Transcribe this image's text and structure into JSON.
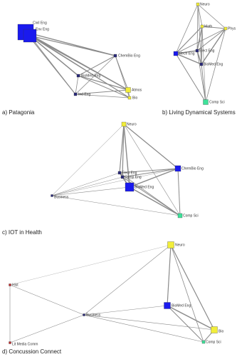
{
  "panels": [
    {
      "caption": "a) Patagonia",
      "nodes": [
        "Civil Eng",
        "Env Eng",
        "ChemBio Eng",
        "BioMed Eng",
        "Ind Eng",
        "Atmos",
        "Bio"
      ]
    },
    {
      "caption": "b) Living Dynamical Systems",
      "nodes": [
        "Neuro",
        "Math",
        "Phys",
        "Elect Eng",
        "Mech Eng",
        "BioMed Eng",
        "Comp Sci"
      ]
    },
    {
      "caption": "c) IOT in Health",
      "nodes": [
        "Neuro",
        "Elect Eng",
        "Comp Eng",
        "ChemBio Eng",
        "BioMed Eng",
        "Business",
        "Comp Sci"
      ]
    },
    {
      "caption": "d) Concussion Connect",
      "nodes": [
        "Neuro",
        "Hist",
        "Business",
        "BioMed Eng",
        "Bio",
        "Comp Sci",
        "Lit Media Comm"
      ]
    }
  ]
}
